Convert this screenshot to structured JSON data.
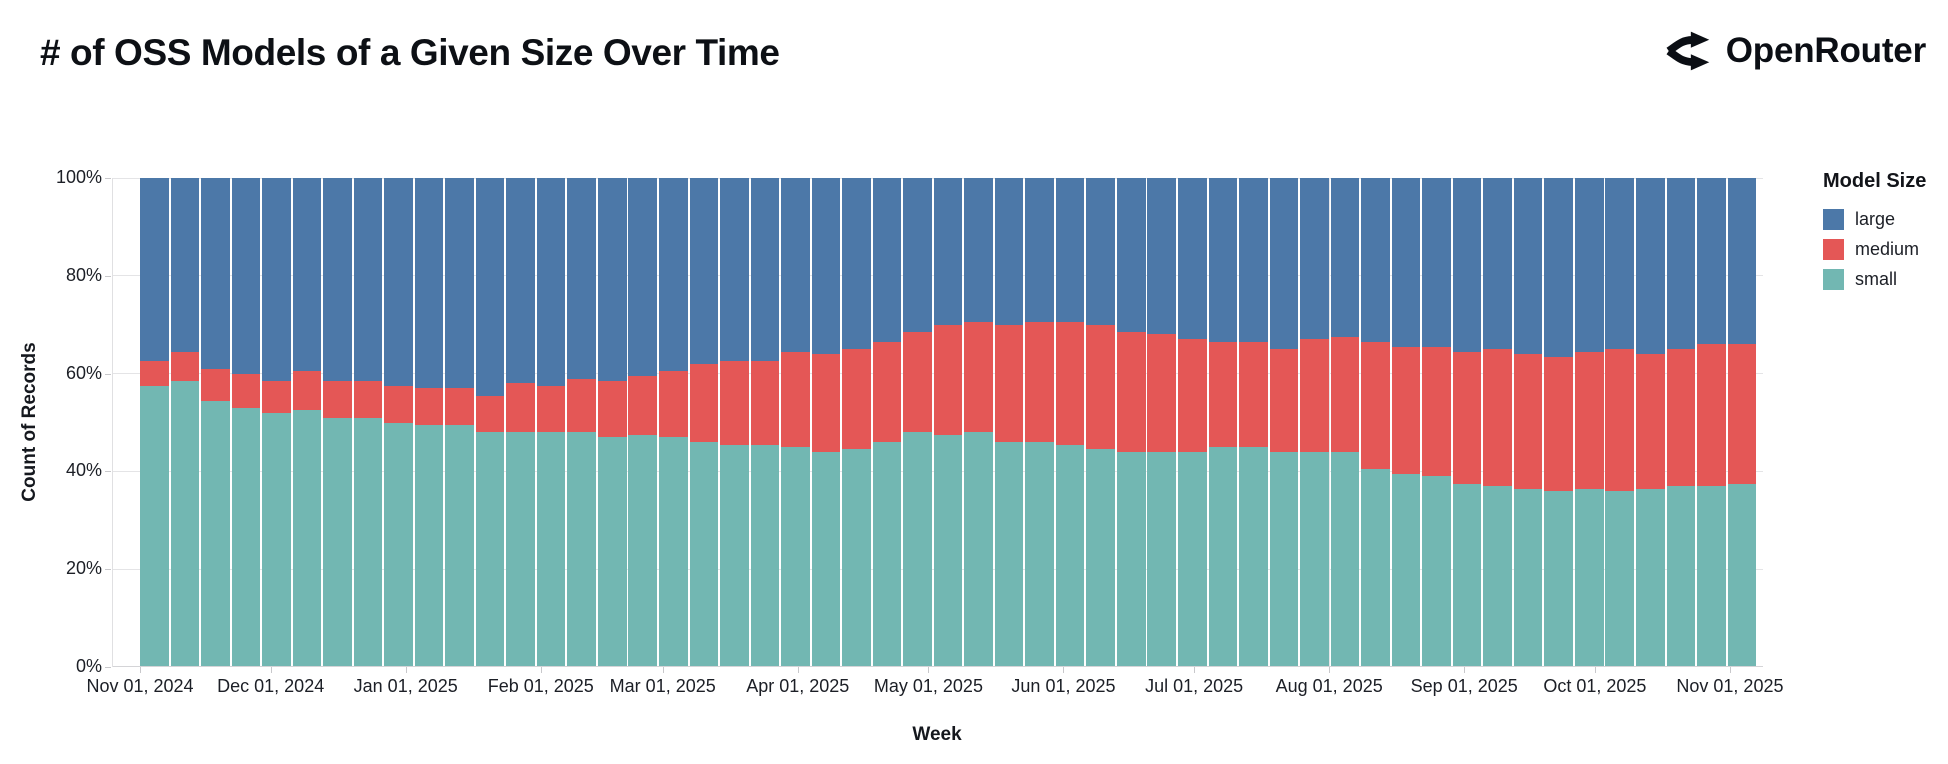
{
  "header": {
    "title": "# of OSS Models of a Given Size Over Time",
    "brand": "OpenRouter"
  },
  "chart": {
    "xlabel": "Week",
    "ylabel": "Count of Records",
    "y_ticks": [
      {
        "label": "0%",
        "pct": 0
      },
      {
        "label": "20%",
        "pct": 20
      },
      {
        "label": "40%",
        "pct": 40
      },
      {
        "label": "60%",
        "pct": 60
      },
      {
        "label": "80%",
        "pct": 80
      },
      {
        "label": "100%",
        "pct": 100
      }
    ],
    "x_ticks": [
      {
        "label": "Nov 01, 2024",
        "day": 0
      },
      {
        "label": "Dec 01, 2024",
        "day": 30
      },
      {
        "label": "Jan 01, 2025",
        "day": 61
      },
      {
        "label": "Feb 01, 2025",
        "day": 92
      },
      {
        "label": "Mar 01, 2025",
        "day": 120
      },
      {
        "label": "Apr 01, 2025",
        "day": 151
      },
      {
        "label": "May 01, 2025",
        "day": 181
      },
      {
        "label": "Jun 01, 2025",
        "day": 212
      },
      {
        "label": "Jul 01, 2025",
        "day": 242
      },
      {
        "label": "Aug 01, 2025",
        "day": 273
      },
      {
        "label": "Sep 01, 2025",
        "day": 304
      },
      {
        "label": "Oct 01, 2025",
        "day": 334
      },
      {
        "label": "Nov 01, 2025",
        "day": 365
      }
    ],
    "legend": {
      "title": "Model Size",
      "entries": [
        {
          "label": "large",
          "color": "#4c78a8"
        },
        {
          "label": "medium",
          "color": "#e45756"
        },
        {
          "label": "small",
          "color": "#72b7b2"
        }
      ]
    }
  },
  "chart_data": {
    "type": "bar",
    "stacked": true,
    "normalized": true,
    "title": "# of OSS Models of a Given Size Over Time",
    "xlabel": "Week",
    "ylabel": "Count of Records",
    "ylim": [
      0,
      100
    ],
    "x_range": [
      "2024-11-01",
      "2025-11-01"
    ],
    "legend_position": "right",
    "stack_order_bottom_to_top": [
      "small",
      "medium",
      "large"
    ],
    "weeks": [
      "2024-11-01",
      "2024-11-08",
      "2024-11-15",
      "2024-11-22",
      "2024-11-29",
      "2024-12-06",
      "2024-12-13",
      "2024-12-20",
      "2024-12-27",
      "2025-01-03",
      "2025-01-10",
      "2025-01-17",
      "2025-01-24",
      "2025-01-31",
      "2025-02-07",
      "2025-02-14",
      "2025-02-21",
      "2025-02-28",
      "2025-03-07",
      "2025-03-14",
      "2025-03-21",
      "2025-03-28",
      "2025-04-04",
      "2025-04-11",
      "2025-04-18",
      "2025-04-25",
      "2025-05-02",
      "2025-05-09",
      "2025-05-16",
      "2025-05-23",
      "2025-05-30",
      "2025-06-06",
      "2025-06-13",
      "2025-06-20",
      "2025-06-27",
      "2025-07-04",
      "2025-07-11",
      "2025-07-18",
      "2025-07-25",
      "2025-08-01",
      "2025-08-08",
      "2025-08-15",
      "2025-08-22",
      "2025-08-29",
      "2025-09-05",
      "2025-09-12",
      "2025-09-19",
      "2025-09-26",
      "2025-10-03",
      "2025-10-10",
      "2025-10-17",
      "2025-10-24",
      "2025-10-31"
    ],
    "series": [
      {
        "name": "small",
        "color": "#72b7b2",
        "values": [
          57.5,
          58.5,
          54.5,
          53,
          52,
          52.5,
          51,
          51,
          50,
          49.5,
          49.5,
          48,
          48,
          48,
          48,
          47,
          47.5,
          47,
          46,
          45.5,
          45.5,
          45,
          44,
          44.5,
          46,
          48,
          47.5,
          48,
          46,
          46,
          45.5,
          44.5,
          44,
          44,
          44,
          45,
          45,
          44,
          44,
          44,
          40.5,
          39.5,
          39,
          37.5,
          37,
          36.5,
          36,
          36.5,
          36,
          36.5,
          37,
          37,
          37.5
        ]
      },
      {
        "name": "medium",
        "color": "#e45756",
        "values": [
          5,
          6,
          6.5,
          7,
          6.5,
          8,
          7.5,
          7.5,
          7.5,
          7.5,
          7.5,
          7.5,
          10,
          9.5,
          11,
          11.5,
          12,
          13.5,
          16,
          17,
          17,
          19.5,
          20,
          20.5,
          20.5,
          20.5,
          22.5,
          22.5,
          24,
          24.5,
          25,
          25.5,
          24.5,
          24,
          23,
          21.5,
          21.5,
          21,
          23,
          23.5,
          26,
          26,
          26.5,
          27,
          28,
          27.5,
          27.5,
          28,
          29,
          27.5,
          28,
          29,
          28.5
        ]
      },
      {
        "name": "large",
        "color": "#4c78a8",
        "values": [
          37.5,
          35.5,
          39,
          40,
          41.5,
          39.5,
          41.5,
          41.5,
          42.5,
          43,
          43,
          44.5,
          42,
          42.5,
          41,
          41.5,
          40.5,
          39.5,
          38,
          37.5,
          37.5,
          35.5,
          36,
          35,
          33.5,
          31.5,
          30,
          29.5,
          30,
          29.5,
          29.5,
          30,
          31.5,
          32,
          33,
          33.5,
          33.5,
          35,
          33,
          32.5,
          33.5,
          34.5,
          34.5,
          35.5,
          35,
          36,
          36.5,
          35.5,
          35,
          36,
          35,
          34,
          34
        ]
      }
    ]
  }
}
